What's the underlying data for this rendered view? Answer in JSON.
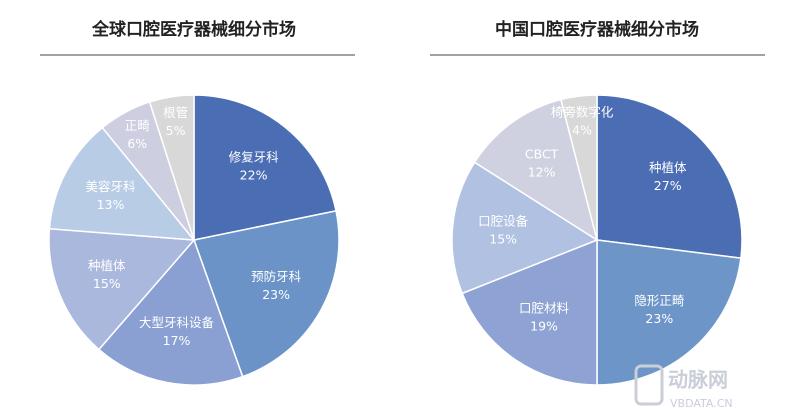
{
  "chart_data": [
    {
      "type": "pie",
      "title": "全球口腔医疗器械细分市场",
      "categories": [
        "修复牙科",
        "预防牙科",
        "大型牙科设备",
        "种植体",
        "美容牙科",
        "正畸",
        "根管"
      ],
      "values": [
        22,
        23,
        17,
        15,
        13,
        6,
        5
      ],
      "value_labels": [
        "22%",
        "23%",
        "17%",
        "15%",
        "13%",
        "6%",
        "5%"
      ],
      "colors": [
        "#4a6db4",
        "#6b93c7",
        "#8a9fd2",
        "#a9b8dc",
        "#b8cce6",
        "#cdcfe0",
        "#d8d8d8"
      ]
    },
    {
      "type": "pie",
      "title": "中国口腔医疗器械细分市场",
      "categories": [
        "种植体",
        "隐形正畸",
        "口腔材料",
        "口腔设备",
        "CBCT",
        "椅旁数字化"
      ],
      "values": [
        27,
        23,
        19,
        15,
        12,
        4
      ],
      "value_labels": [
        "27%",
        "23%",
        "19%",
        "15%",
        "12%",
        "4%"
      ],
      "colors": [
        "#4a6db4",
        "#6d95c8",
        "#8ea3d3",
        "#b0c1e2",
        "#cfd1e1",
        "#d8d8d8"
      ]
    }
  ],
  "watermark": {
    "name": "动脉网",
    "url": "VBDATA.CN"
  }
}
